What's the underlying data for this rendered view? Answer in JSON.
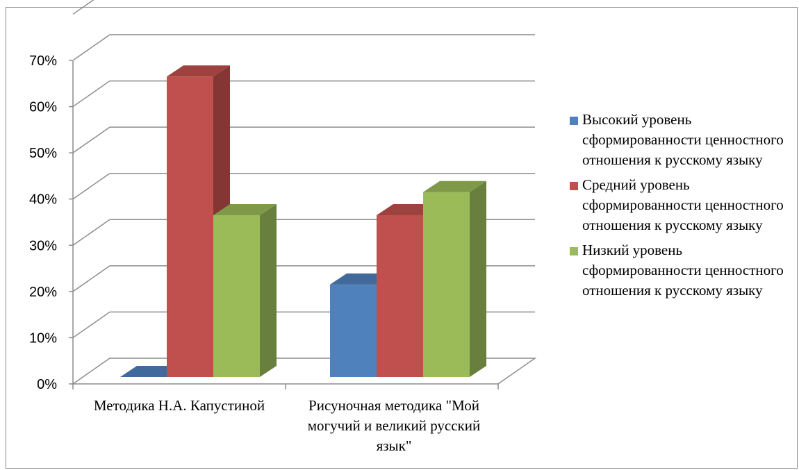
{
  "chart_data": {
    "type": "bar",
    "variant": "3d-clustered-column",
    "categories": [
      "Методика Н.А. Капустиной",
      "Рисуночная методика \"Мой могучий и великий русский язык\""
    ],
    "series": [
      {
        "name": "Высокий уровень сформированности ценностного отношения к русскому языку",
        "values": [
          0,
          20
        ],
        "color": "#4f81bd"
      },
      {
        "name": "Средний уровень сформированности ценностного отношения к русскому языку",
        "values": [
          65,
          35
        ],
        "color": "#c0504d"
      },
      {
        "name": "Низкий уровень сформированности ценностного отношения к русскому языку",
        "values": [
          35,
          40
        ],
        "color": "#9bbb59"
      }
    ],
    "yticks": [
      "0%",
      "10%",
      "20%",
      "30%",
      "40%",
      "50%",
      "60%",
      "70%"
    ],
    "ylim": [
      0,
      70
    ],
    "grid": true,
    "legend_position": "right"
  }
}
